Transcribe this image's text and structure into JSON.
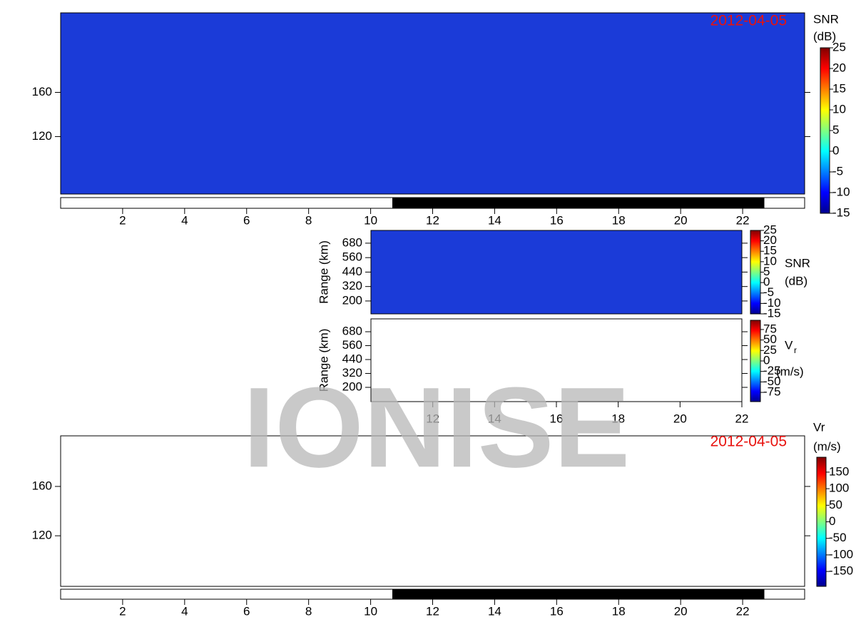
{
  "watermark": "IONISE",
  "chart_data": [
    {
      "type": "heatmap",
      "date": "2012-04-05",
      "xlim": [
        0,
        24
      ],
      "xticks": [
        2,
        4,
        6,
        8,
        10,
        12,
        14,
        16,
        18,
        20,
        22
      ],
      "ylim": [
        68,
        232
      ],
      "yticks": [
        120,
        160
      ],
      "night": [
        10.7,
        22.7
      ],
      "background": "#1b3bd8",
      "colorbar": {
        "label": "SNR",
        "unit": "(dB)",
        "lim": [
          -15,
          25
        ],
        "ticks": [
          25,
          20,
          15,
          10,
          5,
          0,
          -5,
          -10,
          -15
        ]
      }
    },
    {
      "type": "heatmap",
      "ylabel": "Range (km)",
      "xlim": [
        10,
        22
      ],
      "ylim": [
        93,
        786
      ],
      "yticks": [
        200,
        320,
        440,
        560,
        680
      ],
      "background": "#1b3bd8",
      "colorbar": {
        "label": "SNR",
        "unit": "(dB)",
        "lim": [
          -15,
          25
        ],
        "ticks": [
          25,
          20,
          15,
          10,
          5,
          0,
          -5,
          -10,
          -15
        ]
      }
    },
    {
      "type": "heatmap",
      "ylabel": "Range (km)",
      "xlim": [
        10,
        22
      ],
      "xticks": [
        12,
        14,
        16,
        18,
        20,
        22
      ],
      "ylim": [
        77,
        791
      ],
      "yticks": [
        200,
        320,
        440,
        560,
        680
      ],
      "background": "#ffffff",
      "colorbar": {
        "label": "V",
        "label_sub": "r",
        "unit": "(m/s)",
        "lim": [
          -97,
          97
        ],
        "ticks": [
          75,
          50,
          25,
          0,
          -25,
          -50,
          -75
        ]
      }
    },
    {
      "type": "heatmap",
      "date": "2012-04-05",
      "xlim": [
        0,
        24
      ],
      "xticks": [
        2,
        4,
        6,
        8,
        10,
        12,
        14,
        16,
        18,
        20,
        22
      ],
      "ylim": [
        79,
        201
      ],
      "yticks": [
        120,
        160
      ],
      "night": [
        10.7,
        22.7
      ],
      "background": "#ffffff",
      "colorbar": {
        "label": "Vr",
        "unit": "(m/s)",
        "lim": [
          -195,
          195
        ],
        "ticks": [
          150,
          100,
          50,
          0,
          -50,
          -100,
          -150
        ]
      }
    }
  ]
}
